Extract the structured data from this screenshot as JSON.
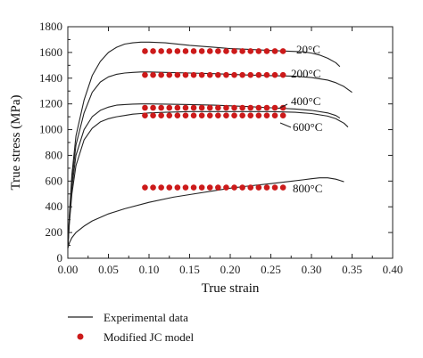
{
  "chart_data": {
    "type": "line",
    "title": "",
    "xlabel": "True strain",
    "ylabel": "True stress (MPa)",
    "xlim": [
      0.0,
      0.4
    ],
    "ylim": [
      0,
      1800
    ],
    "x_ticks": [
      "0.00",
      "0.05",
      "0.10",
      "0.15",
      "0.20",
      "0.25",
      "0.30",
      "0.35",
      "0.40"
    ],
    "y_ticks": [
      "0",
      "200",
      "400",
      "600",
      "800",
      "1000",
      "1200",
      "1400",
      "1600",
      "1800"
    ],
    "grid": false,
    "legend": {
      "placement": "bottom-left",
      "line_label": "Experimental data",
      "dot_label": "Modified JC model"
    },
    "colors": {
      "line": "#222222",
      "dots": "#cc1a1a"
    },
    "series": [
      {
        "name": "20°C",
        "experimental": {
          "x": [
            0,
            0.002,
            0.005,
            0.01,
            0.02,
            0.03,
            0.04,
            0.05,
            0.06,
            0.07,
            0.08,
            0.09,
            0.1,
            0.12,
            0.15,
            0.18,
            0.2,
            0.22,
            0.25,
            0.27,
            0.29,
            0.3,
            0.31,
            0.32,
            0.33,
            0.335
          ],
          "y": [
            80,
            350,
            650,
            950,
            1230,
            1420,
            1530,
            1600,
            1640,
            1665,
            1675,
            1680,
            1680,
            1675,
            1655,
            1640,
            1630,
            1625,
            1615,
            1610,
            1605,
            1595,
            1580,
            1555,
            1520,
            1490
          ]
        },
        "model": {
          "x": [
            0.095,
            0.105,
            0.115,
            0.125,
            0.135,
            0.145,
            0.155,
            0.165,
            0.175,
            0.185,
            0.195,
            0.205,
            0.215,
            0.225,
            0.235,
            0.245,
            0.255,
            0.265
          ],
          "y": [
            1610,
            1610,
            1610,
            1610,
            1610,
            1610,
            1610,
            1610,
            1610,
            1610,
            1610,
            1610,
            1610,
            1610,
            1610,
            1610,
            1610,
            1610
          ]
        }
      },
      {
        "name": "200°C",
        "experimental": {
          "x": [
            0,
            0.002,
            0.005,
            0.01,
            0.02,
            0.03,
            0.04,
            0.05,
            0.06,
            0.07,
            0.08,
            0.09,
            0.1,
            0.12,
            0.15,
            0.18,
            0.2,
            0.22,
            0.25,
            0.28,
            0.3,
            0.32,
            0.33,
            0.34,
            0.35
          ],
          "y": [
            80,
            320,
            600,
            880,
            1130,
            1290,
            1370,
            1410,
            1430,
            1440,
            1445,
            1448,
            1448,
            1445,
            1440,
            1435,
            1430,
            1425,
            1420,
            1415,
            1405,
            1385,
            1365,
            1335,
            1290
          ]
        },
        "model": {
          "x": [
            0.095,
            0.105,
            0.115,
            0.125,
            0.135,
            0.145,
            0.155,
            0.165,
            0.175,
            0.185,
            0.195,
            0.205,
            0.215,
            0.225,
            0.235,
            0.245,
            0.255,
            0.265
          ],
          "y": [
            1425,
            1425,
            1425,
            1425,
            1425,
            1425,
            1425,
            1425,
            1425,
            1425,
            1425,
            1425,
            1425,
            1425,
            1425,
            1425,
            1425,
            1425
          ]
        }
      },
      {
        "name": "400°C",
        "experimental": {
          "x": [
            0,
            0.002,
            0.005,
            0.01,
            0.02,
            0.03,
            0.04,
            0.05,
            0.06,
            0.07,
            0.08,
            0.09,
            0.1,
            0.12,
            0.15,
            0.18,
            0.2,
            0.22,
            0.25,
            0.28,
            0.3,
            0.32,
            0.33,
            0.335
          ],
          "y": [
            80,
            300,
            550,
            800,
            1000,
            1100,
            1150,
            1175,
            1190,
            1195,
            1198,
            1200,
            1200,
            1198,
            1195,
            1190,
            1185,
            1180,
            1170,
            1160,
            1150,
            1130,
            1110,
            1090
          ]
        },
        "model": {
          "x": [
            0.095,
            0.105,
            0.115,
            0.125,
            0.135,
            0.145,
            0.155,
            0.165,
            0.175,
            0.185,
            0.195,
            0.205,
            0.215,
            0.225,
            0.235,
            0.245,
            0.255,
            0.265
          ],
          "y": [
            1170,
            1170,
            1170,
            1170,
            1170,
            1170,
            1170,
            1170,
            1170,
            1170,
            1170,
            1170,
            1170,
            1170,
            1170,
            1170,
            1170,
            1170
          ]
        }
      },
      {
        "name": "600°C",
        "experimental": {
          "x": [
            0,
            0.002,
            0.005,
            0.01,
            0.02,
            0.03,
            0.04,
            0.05,
            0.06,
            0.07,
            0.08,
            0.09,
            0.1,
            0.12,
            0.15,
            0.18,
            0.2,
            0.22,
            0.25,
            0.28,
            0.3,
            0.32,
            0.33,
            0.34,
            0.345
          ],
          "y": [
            80,
            280,
            500,
            720,
            920,
            1010,
            1060,
            1085,
            1100,
            1110,
            1120,
            1125,
            1130,
            1135,
            1140,
            1140,
            1140,
            1140,
            1140,
            1135,
            1125,
            1105,
            1085,
            1050,
            1020
          ]
        },
        "model": {
          "x": [
            0.095,
            0.105,
            0.115,
            0.125,
            0.135,
            0.145,
            0.155,
            0.165,
            0.175,
            0.185,
            0.195,
            0.205,
            0.215,
            0.225,
            0.235,
            0.245,
            0.255,
            0.265
          ],
          "y": [
            1110,
            1110,
            1110,
            1110,
            1110,
            1110,
            1110,
            1110,
            1110,
            1110,
            1110,
            1110,
            1110,
            1110,
            1110,
            1110,
            1110,
            1110
          ]
        }
      },
      {
        "name": "800°C",
        "experimental": {
          "x": [
            0,
            0.002,
            0.005,
            0.01,
            0.02,
            0.03,
            0.05,
            0.07,
            0.1,
            0.13,
            0.15,
            0.18,
            0.2,
            0.22,
            0.25,
            0.27,
            0.29,
            0.3,
            0.31,
            0.32,
            0.33,
            0.34
          ],
          "y": [
            80,
            120,
            160,
            200,
            250,
            290,
            345,
            385,
            435,
            475,
            495,
            525,
            545,
            560,
            580,
            595,
            610,
            618,
            625,
            625,
            615,
            595
          ]
        },
        "model": {
          "x": [
            0.095,
            0.105,
            0.115,
            0.125,
            0.135,
            0.145,
            0.155,
            0.165,
            0.175,
            0.185,
            0.195,
            0.205,
            0.215,
            0.225,
            0.235,
            0.245,
            0.255,
            0.265
          ],
          "y": [
            550,
            550,
            550,
            550,
            550,
            550,
            550,
            550,
            550,
            550,
            550,
            550,
            550,
            550,
            550,
            550,
            550,
            550
          ]
        }
      }
    ]
  }
}
